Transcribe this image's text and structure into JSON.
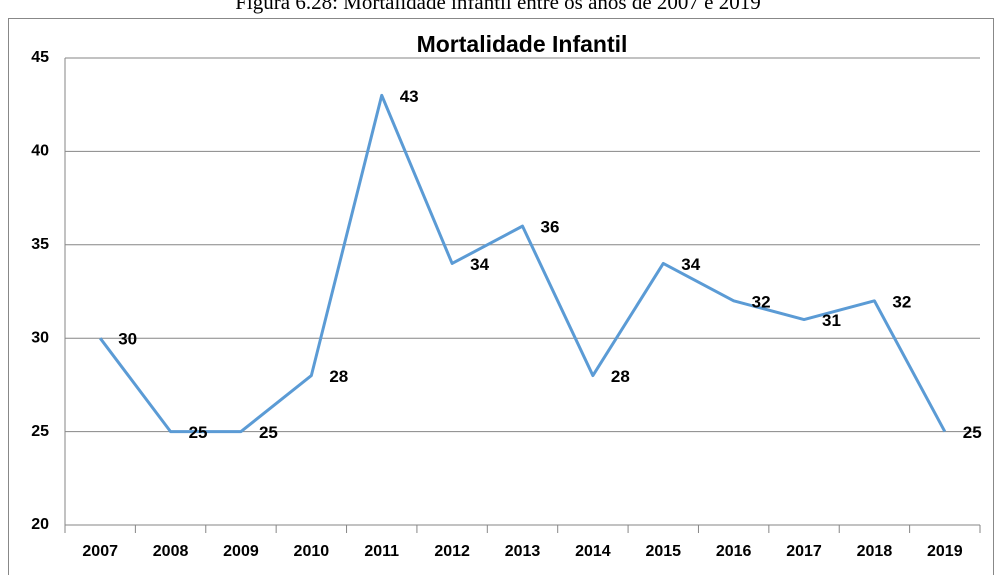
{
  "caption": "Figura 6.28: Mortalidade infantil entre os anos de 2007 e 2019",
  "chart_data": {
    "type": "line",
    "title": "Mortalidade Infantil",
    "categories": [
      "2007",
      "2008",
      "2009",
      "2010",
      "2011",
      "2012",
      "2013",
      "2014",
      "2015",
      "2016",
      "2017",
      "2018",
      "2019"
    ],
    "values": [
      30,
      25,
      25,
      28,
      43,
      34,
      36,
      28,
      34,
      32,
      31,
      32,
      25
    ],
    "color": "#5b9bd5",
    "ylim": [
      20,
      45
    ],
    "yticks": [
      20,
      25,
      30,
      35,
      40,
      45
    ],
    "grid": true
  }
}
